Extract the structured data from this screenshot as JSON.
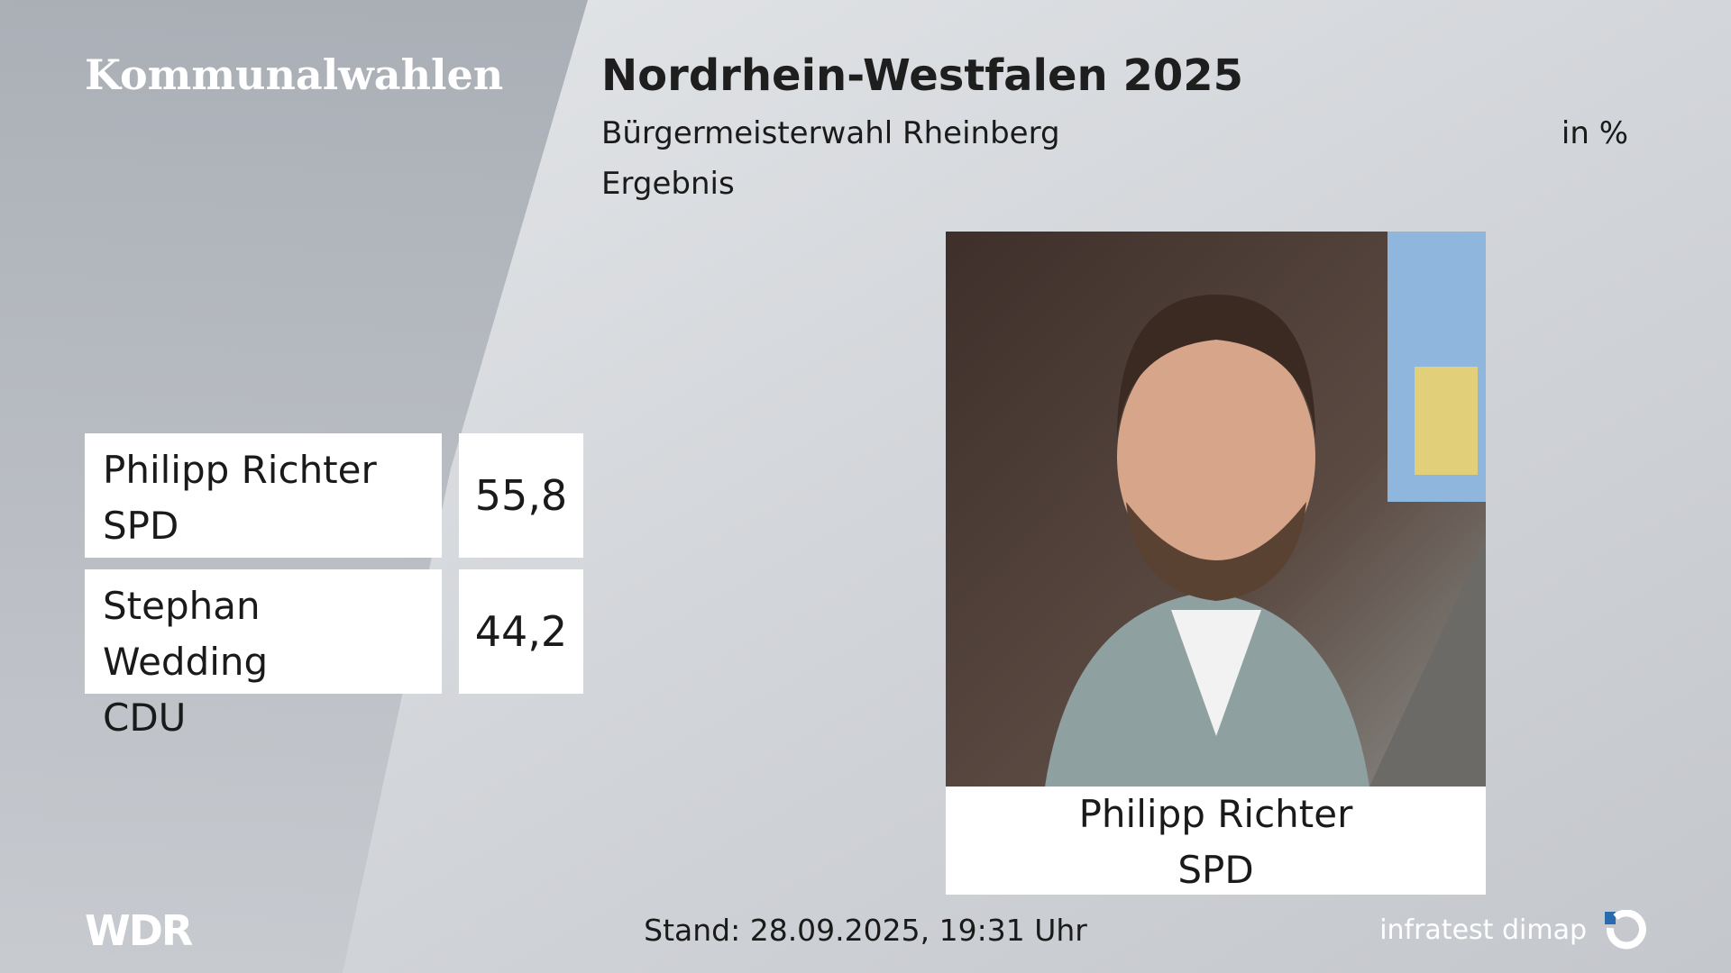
{
  "header": {
    "section": "Kommunalwahlen",
    "title": "Nordrhein-Westfalen 2025",
    "subtitle": "Bürgermeisterwahl Rheinberg",
    "unit": "in %",
    "label": "Ergebnis"
  },
  "table": {
    "rows": [
      [
        "Philipp Richter",
        "SPD",
        "55,8"
      ],
      [
        "Stephan Wedding",
        "CDU",
        "44,2"
      ]
    ]
  },
  "photo": {
    "name": "Philipp Richter",
    "party": "SPD"
  },
  "footer": {
    "logo": "WDR",
    "stand": "Stand: 28.09.2025, 19:31 Uhr",
    "source": "infratest dimap"
  }
}
